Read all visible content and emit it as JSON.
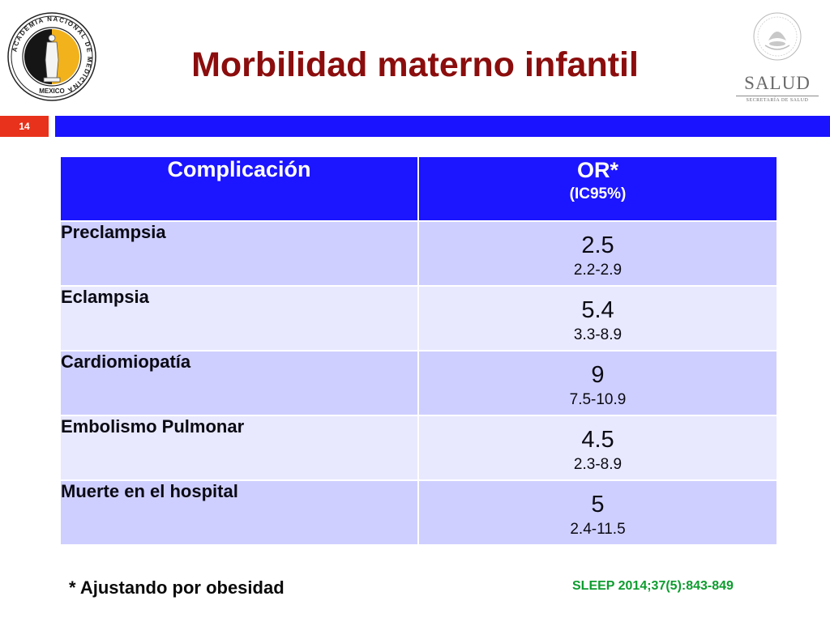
{
  "header": {
    "title": "Morbilidad materno infantil",
    "left_logo": {
      "icon": "academia-nacional-de-medicina-seal-icon",
      "ring_text": "ACADEMIA NACIONAL DE MEDICINA",
      "bottom_text": "MEXICO",
      "colors": {
        "gold": "#f2b21c",
        "black": "#151515"
      }
    },
    "right_logo": {
      "icon": "mexican-coat-of-arms-icon",
      "brand": "SALUD",
      "subtitle": "SECRETARÍA DE SALUD"
    }
  },
  "slide": {
    "number": "14",
    "colors": {
      "number_bg": "#e8321b",
      "bar": "#1a13ff"
    }
  },
  "table": {
    "headers": {
      "complication": "Complicación",
      "or": "OR*",
      "ci": "(IC95%)"
    },
    "rows": [
      {
        "complication": "Preclampsia",
        "or": "2.5",
        "ci": "2.2-2.9"
      },
      {
        "complication": "Eclampsia",
        "or": "5.4",
        "ci": "3.3-8.9"
      },
      {
        "complication": "Cardiomiopatía",
        "or": "9",
        "ci": "7.5-10.9"
      },
      {
        "complication": "Embolismo Pulmonar",
        "or": "4.5",
        "ci": "2.3-8.9"
      },
      {
        "complication": "Muerte en el hospital",
        "or": "5",
        "ci": "2.4-11.5"
      }
    ],
    "colors": {
      "header_bg": "#1c15ff",
      "row_odd": "#cfcfff",
      "row_even": "#e8e8fe"
    }
  },
  "footer": {
    "footnote": "* Ajustando por obesidad",
    "citation": "SLEEP 2014;37(5):843-849",
    "citation_color": "#0d9c2e"
  }
}
